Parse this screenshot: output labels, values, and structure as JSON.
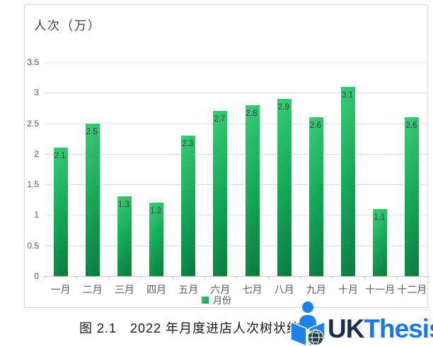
{
  "chart": {
    "title": "人次（万）",
    "legend_label": "月份"
  },
  "chart_data": {
    "type": "bar",
    "title": "人次（万）",
    "categories": [
      "一月",
      "二月",
      "三月",
      "四月",
      "五月",
      "六月",
      "七月",
      "八月",
      "九月",
      "十月",
      "十一月",
      "十二月"
    ],
    "values": [
      2.1,
      2.5,
      1.3,
      1.2,
      2.3,
      2.7,
      2.8,
      2.9,
      2.6,
      3.1,
      1.1,
      2.6
    ],
    "xlabel": "",
    "ylabel": "人次（万）",
    "ylim": [
      0,
      3.5
    ],
    "yticks": [
      0,
      0.5,
      1,
      1.5,
      2,
      2.5,
      3,
      3.5
    ],
    "grid": true,
    "data_labels": true,
    "legend": [
      "月份"
    ],
    "legend_position": "bottom",
    "bar_color_gradient": [
      "#3bcb77",
      "#0c7a40"
    ]
  },
  "caption": {
    "text": "图 2.1　2022 年月度进店人次树状统"
  },
  "logo": {
    "text_primary": "UK",
    "text_secondary": "Thesis",
    "primary_color": "#1d2c4e",
    "secondary_color": "#1678e8",
    "icon_color": "#1e82e6",
    "globe_color": "#263953",
    "icon": "reader-book-globe-icon"
  },
  "colors": {
    "gridline": "#e2e2e2",
    "axis": "#c6c6c6",
    "tick_label": "#595959",
    "data_label": "#3d3d3d",
    "title": "#404040"
  }
}
